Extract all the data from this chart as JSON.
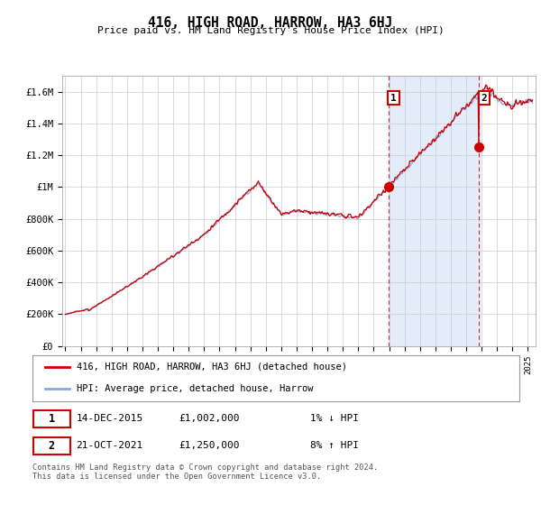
{
  "title": "416, HIGH ROAD, HARROW, HA3 6HJ",
  "subtitle": "Price paid vs. HM Land Registry's House Price Index (HPI)",
  "ylabel_ticks": [
    "£0",
    "£200K",
    "£400K",
    "£600K",
    "£800K",
    "£1M",
    "£1.2M",
    "£1.4M",
    "£1.6M"
  ],
  "ytick_values": [
    0,
    200000,
    400000,
    600000,
    800000,
    1000000,
    1200000,
    1400000,
    1600000
  ],
  "ylim": [
    0,
    1700000
  ],
  "xlim_start": 1994.8,
  "xlim_end": 2025.5,
  "hpi_color": "#88aadd",
  "property_color": "#cc0000",
  "shade_color": "#ccddf5",
  "sale1_x": 2015.95,
  "sale1_y": 1002000,
  "sale2_x": 2021.8,
  "sale2_y": 1250000,
  "background_color": "#ffffff",
  "grid_color": "#cccccc",
  "footer_text": "Contains HM Land Registry data © Crown copyright and database right 2024.\nThis data is licensed under the Open Government Licence v3.0.",
  "legend_property": "416, HIGH ROAD, HARROW, HA3 6HJ (detached house)",
  "legend_hpi": "HPI: Average price, detached house, Harrow",
  "table_row1": [
    "1",
    "14-DEC-2015",
    "£1,002,000",
    "1% ↓ HPI"
  ],
  "table_row2": [
    "2",
    "21-OCT-2021",
    "£1,250,000",
    "8% ↑ HPI"
  ]
}
